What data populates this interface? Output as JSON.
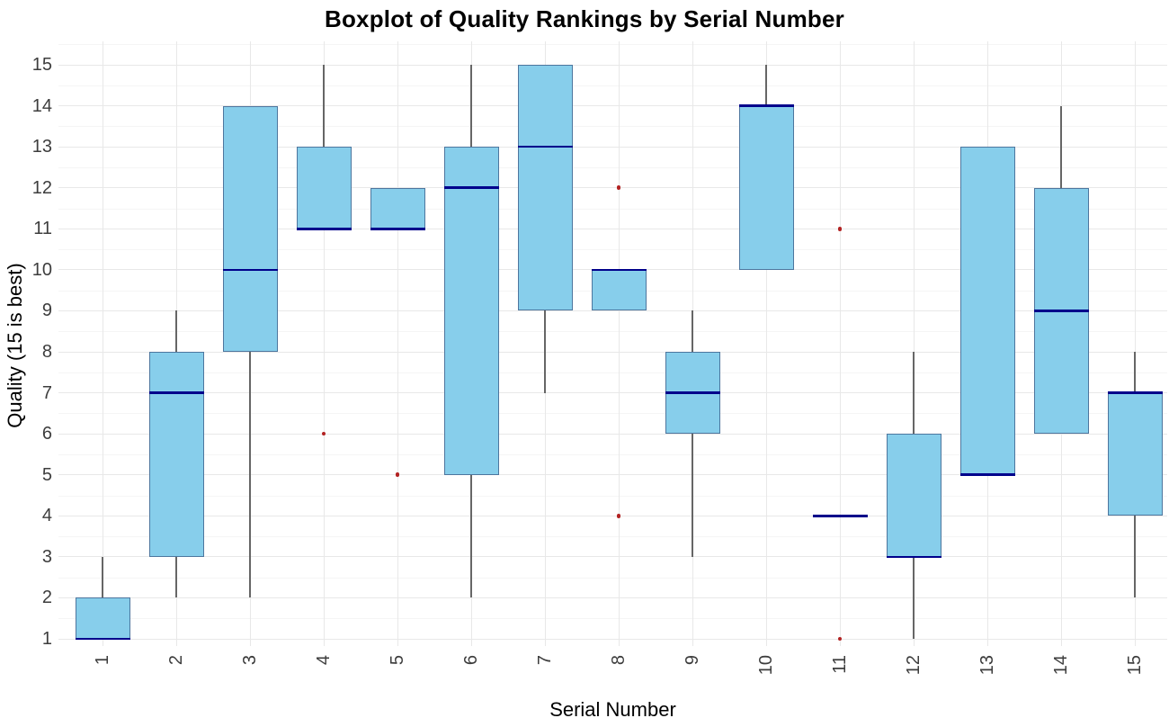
{
  "title": "Boxplot of Quality Rankings by Serial Number",
  "chart_data": {
    "type": "boxplot",
    "title": "Boxplot of Quality Rankings by Serial Number",
    "xlabel": "Serial Number",
    "ylabel": "Quality (15 is best)",
    "x_categories": [
      "1",
      "2",
      "3",
      "4",
      "5",
      "6",
      "7",
      "8",
      "9",
      "10",
      "11",
      "12",
      "13",
      "14",
      "15"
    ],
    "y_ticks": [
      1,
      2,
      3,
      4,
      5,
      6,
      7,
      8,
      9,
      10,
      11,
      12,
      13,
      14,
      15
    ],
    "ylim": [
      1,
      15
    ],
    "grid": "horizontal major + minor, vertical major per category",
    "legend": "none",
    "x_tick_rotation_degrees": 90,
    "boxes": [
      {
        "serial": "1",
        "q1": 1,
        "median": 1,
        "q3": 2,
        "whisker_low": 1,
        "whisker_high": 3,
        "outliers": []
      },
      {
        "serial": "2",
        "q1": 3,
        "median": 7,
        "q3": 8,
        "whisker_low": 2,
        "whisker_high": 9,
        "outliers": []
      },
      {
        "serial": "3",
        "q1": 8,
        "median": 10,
        "q3": 14,
        "whisker_low": 2,
        "whisker_high": 14,
        "outliers": []
      },
      {
        "serial": "4",
        "q1": 11,
        "median": 11,
        "q3": 13,
        "whisker_low": 11,
        "whisker_high": 15,
        "outliers": [
          6
        ]
      },
      {
        "serial": "5",
        "q1": 11,
        "median": 11,
        "q3": 12,
        "whisker_low": 11,
        "whisker_high": 12,
        "outliers": [
          5
        ]
      },
      {
        "serial": "6",
        "q1": 5,
        "median": 12,
        "q3": 13,
        "whisker_low": 2,
        "whisker_high": 15,
        "outliers": []
      },
      {
        "serial": "7",
        "q1": 9,
        "median": 13,
        "q3": 15,
        "whisker_low": 7,
        "whisker_high": 15,
        "outliers": []
      },
      {
        "serial": "8",
        "q1": 9,
        "median": 10,
        "q3": 10,
        "whisker_low": 9,
        "whisker_high": 10,
        "outliers": [
          12,
          4
        ]
      },
      {
        "serial": "9",
        "q1": 6,
        "median": 7,
        "q3": 8,
        "whisker_low": 3,
        "whisker_high": 9,
        "outliers": []
      },
      {
        "serial": "10",
        "q1": 10,
        "median": 14,
        "q3": 14,
        "whisker_low": 10,
        "whisker_high": 15,
        "outliers": []
      },
      {
        "serial": "11",
        "q1": 4,
        "median": 4,
        "q3": 4,
        "whisker_low": 4,
        "whisker_high": 4,
        "outliers": [
          11,
          1
        ]
      },
      {
        "serial": "12",
        "q1": 3,
        "median": 3,
        "q3": 6,
        "whisker_low": 1,
        "whisker_high": 8,
        "outliers": []
      },
      {
        "serial": "13",
        "q1": 5,
        "median": 5,
        "q3": 13,
        "whisker_low": 5,
        "whisker_high": 13,
        "outliers": []
      },
      {
        "serial": "14",
        "q1": 6,
        "median": 9,
        "q3": 12,
        "whisker_low": 6,
        "whisker_high": 14,
        "outliers": []
      },
      {
        "serial": "15",
        "q1": 4,
        "median": 7,
        "q3": 7,
        "whisker_low": 2,
        "whisker_high": 8,
        "outliers": []
      }
    ],
    "colors": {
      "box_fill": "#87CEEB",
      "box_border": "#4D769E",
      "median_line": "#00008B",
      "whisker": "#666666",
      "outlier": "#B22222",
      "grid_major": "#E8E8E8",
      "grid_minor": "#F5F5F5",
      "tick_label": "#3D3D3D",
      "axis_title": "#000000",
      "background": "#FFFFFF"
    }
  }
}
